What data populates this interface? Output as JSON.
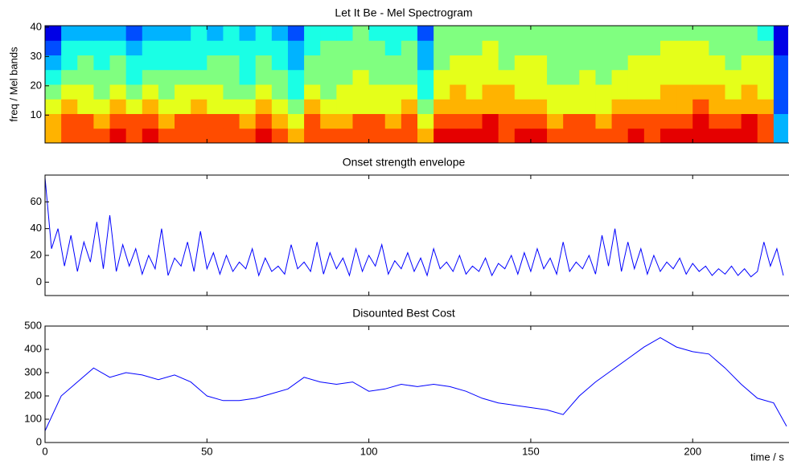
{
  "chart_data": [
    {
      "type": "heatmap",
      "title": "Let It Be - Mel Spectrogram",
      "ylabel": "freq / Mel bands",
      "x": [
        0,
        5,
        10,
        15,
        20,
        25,
        30,
        35,
        40,
        45,
        50,
        55,
        60,
        65,
        70,
        75,
        80,
        85,
        90,
        95,
        100,
        105,
        110,
        115,
        120,
        125,
        130,
        135,
        140,
        145,
        150,
        155,
        160,
        165,
        170,
        175,
        180,
        185,
        190,
        195,
        200,
        205,
        210,
        215,
        220,
        225
      ],
      "bands": [
        3,
        8,
        13,
        18,
        23,
        28,
        33,
        38
      ],
      "z": [
        [
          7,
          8,
          8,
          8,
          9,
          8,
          9,
          8,
          8,
          8,
          8,
          8,
          8,
          9,
          8,
          7,
          8,
          8,
          8,
          8,
          8,
          8,
          8,
          7,
          9,
          9,
          9,
          9,
          8,
          9,
          9,
          8,
          8,
          8,
          8,
          8,
          9,
          8,
          9,
          9,
          9,
          9,
          9,
          9,
          8,
          3
        ],
        [
          7,
          8,
          8,
          7,
          8,
          8,
          8,
          7,
          8,
          8,
          8,
          8,
          7,
          8,
          7,
          6,
          8,
          7,
          7,
          8,
          8,
          7,
          8,
          6,
          8,
          8,
          8,
          9,
          8,
          8,
          8,
          7,
          8,
          8,
          7,
          8,
          8,
          8,
          8,
          8,
          9,
          8,
          8,
          9,
          8,
          3
        ],
        [
          6,
          7,
          6,
          6,
          7,
          6,
          7,
          6,
          6,
          7,
          6,
          6,
          6,
          7,
          6,
          5,
          7,
          6,
          6,
          6,
          6,
          6,
          7,
          5,
          7,
          7,
          7,
          7,
          7,
          7,
          7,
          6,
          6,
          6,
          6,
          7,
          7,
          7,
          7,
          7,
          8,
          7,
          7,
          7,
          7,
          2
        ],
        [
          5,
          6,
          6,
          5,
          6,
          5,
          6,
          5,
          6,
          6,
          6,
          5,
          5,
          6,
          5,
          4,
          6,
          5,
          6,
          6,
          6,
          6,
          6,
          4,
          6,
          7,
          6,
          7,
          7,
          6,
          6,
          6,
          6,
          6,
          6,
          6,
          6,
          6,
          7,
          7,
          7,
          7,
          6,
          7,
          6,
          2
        ],
        [
          4,
          5,
          5,
          5,
          5,
          4,
          5,
          5,
          5,
          5,
          5,
          5,
          4,
          5,
          5,
          4,
          5,
          5,
          5,
          6,
          5,
          5,
          5,
          4,
          6,
          6,
          6,
          6,
          6,
          6,
          6,
          5,
          5,
          6,
          5,
          6,
          6,
          6,
          6,
          6,
          6,
          6,
          6,
          6,
          6,
          2
        ],
        [
          3,
          4,
          5,
          4,
          5,
          4,
          4,
          4,
          4,
          4,
          5,
          5,
          4,
          5,
          4,
          3,
          5,
          5,
          5,
          5,
          5,
          5,
          5,
          3,
          5,
          6,
          6,
          6,
          5,
          6,
          6,
          5,
          5,
          5,
          5,
          5,
          6,
          6,
          6,
          6,
          6,
          6,
          5,
          6,
          6,
          2
        ],
        [
          2,
          4,
          4,
          4,
          4,
          3,
          4,
          4,
          4,
          4,
          4,
          4,
          4,
          4,
          4,
          3,
          4,
          5,
          5,
          5,
          5,
          4,
          5,
          3,
          5,
          5,
          5,
          6,
          5,
          5,
          5,
          5,
          5,
          5,
          5,
          5,
          5,
          5,
          6,
          6,
          6,
          5,
          5,
          5,
          5,
          1
        ],
        [
          1,
          3,
          3,
          3,
          3,
          2,
          3,
          3,
          3,
          4,
          3,
          4,
          3,
          4,
          3,
          2,
          4,
          4,
          4,
          5,
          4,
          4,
          4,
          2,
          5,
          5,
          5,
          5,
          5,
          5,
          5,
          5,
          5,
          5,
          5,
          5,
          5,
          5,
          5,
          5,
          5,
          5,
          5,
          5,
          4,
          1
        ]
      ],
      "zlim": [
        0,
        10
      ],
      "colormap": "jet",
      "xlim": [
        0,
        229.5
      ],
      "xticks": [
        0,
        50,
        100,
        150,
        200
      ],
      "show_xtick_labels": false,
      "ylim": [
        0.5,
        40.5
      ],
      "yticks": [
        10,
        20,
        30,
        40
      ]
    },
    {
      "type": "line",
      "title": "Onset strength envelope",
      "x": [
        0,
        2,
        4,
        6,
        8,
        10,
        12,
        14,
        16,
        18,
        20,
        22,
        24,
        26,
        28,
        30,
        32,
        34,
        36,
        38,
        40,
        42,
        44,
        46,
        48,
        50,
        52,
        54,
        56,
        58,
        60,
        62,
        64,
        66,
        68,
        70,
        72,
        74,
        76,
        78,
        80,
        82,
        84,
        86,
        88,
        90,
        92,
        94,
        96,
        98,
        100,
        102,
        104,
        106,
        108,
        110,
        112,
        114,
        116,
        118,
        120,
        122,
        124,
        126,
        128,
        130,
        132,
        134,
        136,
        138,
        140,
        142,
        144,
        146,
        148,
        150,
        152,
        154,
        156,
        158,
        160,
        162,
        164,
        166,
        168,
        170,
        172,
        174,
        176,
        178,
        180,
        182,
        184,
        186,
        188,
        190,
        192,
        194,
        196,
        198,
        200,
        202,
        204,
        206,
        208,
        210,
        212,
        214,
        216,
        218,
        220,
        222,
        224,
        226,
        228
      ],
      "series": [
        {
          "color": "#0000ff",
          "values": [
            78,
            25,
            40,
            12,
            35,
            8,
            30,
            15,
            45,
            10,
            50,
            8,
            28,
            12,
            25,
            6,
            20,
            10,
            40,
            5,
            18,
            12,
            30,
            8,
            38,
            10,
            22,
            6,
            20,
            8,
            15,
            10,
            25,
            5,
            18,
            8,
            12,
            6,
            28,
            10,
            15,
            8,
            30,
            6,
            22,
            10,
            18,
            5,
            25,
            8,
            20,
            12,
            28,
            6,
            16,
            10,
            22,
            8,
            18,
            5,
            25,
            10,
            15,
            8,
            20,
            6,
            12,
            8,
            18,
            5,
            14,
            10,
            20,
            6,
            22,
            8,
            25,
            10,
            18,
            6,
            30,
            8,
            15,
            10,
            20,
            6,
            35,
            12,
            40,
            8,
            30,
            10,
            25,
            6,
            20,
            8,
            15,
            10,
            18,
            6,
            14,
            8,
            12,
            5,
            10,
            6,
            12,
            5,
            10,
            4,
            8,
            30,
            12,
            25,
            5
          ]
        }
      ],
      "xlim": [
        0,
        229.5
      ],
      "xticks": [
        0,
        50,
        100,
        150,
        200
      ],
      "show_xtick_labels": false,
      "ylim": [
        -10,
        80
      ],
      "yticks": [
        0,
        20,
        40,
        60
      ]
    },
    {
      "type": "line",
      "title": "Disounted Best Cost",
      "xlabel": "time / s",
      "x": [
        0,
        5,
        10,
        15,
        20,
        25,
        30,
        35,
        40,
        45,
        50,
        55,
        60,
        65,
        70,
        75,
        80,
        85,
        90,
        95,
        100,
        105,
        110,
        115,
        120,
        125,
        130,
        135,
        140,
        145,
        150,
        155,
        160,
        165,
        170,
        175,
        180,
        185,
        190,
        195,
        200,
        205,
        210,
        215,
        220,
        225,
        229
      ],
      "series": [
        {
          "color": "#0000ff",
          "values": [
            50,
            200,
            260,
            320,
            280,
            300,
            290,
            270,
            290,
            260,
            200,
            180,
            180,
            190,
            210,
            230,
            280,
            260,
            250,
            260,
            220,
            230,
            250,
            240,
            250,
            240,
            220,
            190,
            170,
            160,
            150,
            140,
            120,
            200,
            260,
            310,
            360,
            410,
            450,
            410,
            390,
            380,
            320,
            250,
            190,
            170,
            70
          ]
        }
      ],
      "xlim": [
        0,
        229.5
      ],
      "xticks": [
        0,
        50,
        100,
        150,
        200
      ],
      "show_xtick_labels": true,
      "ylim": [
        0,
        500
      ],
      "yticks": [
        0,
        100,
        200,
        300,
        400,
        500
      ]
    }
  ]
}
